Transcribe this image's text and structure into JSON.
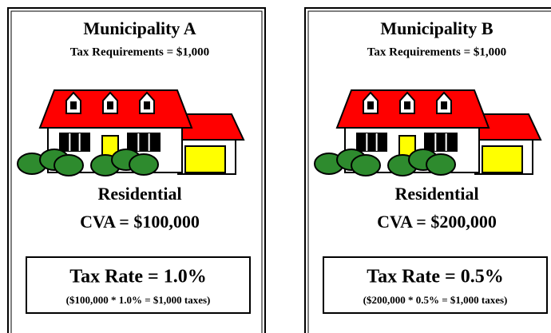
{
  "panels": [
    {
      "title": "Municipality A",
      "subtitle": "Tax Requirements = $1,000",
      "label": "Residential",
      "cva": "CVA = $100,000",
      "rate": "Tax Rate = 1.0%",
      "calc": "($100,000 * 1.0% = $1,000 taxes)"
    },
    {
      "title": "Municipality B",
      "subtitle": "Tax Requirements = $1,000",
      "label": "Residential",
      "cva": "CVA = $200,000",
      "rate": "Tax Rate = 0.5%",
      "calc": "($200,000 * 0.5% = $1,000 taxes)"
    }
  ]
}
